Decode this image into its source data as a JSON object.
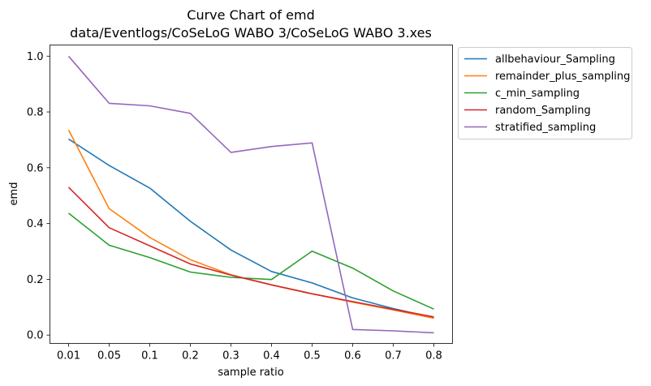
{
  "chart_data": {
    "type": "line",
    "title": "Curve Chart of emd",
    "subtitle": "data/Eventlogs/CoSeLoG WABO 3/CoSeLoG WABO 3.xes",
    "xlabel": "sample ratio",
    "ylabel": "emd",
    "categories": [
      "0.01",
      "0.05",
      "0.1",
      "0.2",
      "0.3",
      "0.4",
      "0.5",
      "0.6",
      "0.7",
      "0.8"
    ],
    "y_ticks": [
      "0.0",
      "0.2",
      "0.4",
      "0.6",
      "0.8",
      "1.0"
    ],
    "ylim": [
      -0.03,
      1.04
    ],
    "grid": false,
    "legend_position": "outside-top-right",
    "series": [
      {
        "name": "allbehaviour_Sampling",
        "color": "#1f77b4",
        "values": [
          0.703,
          0.608,
          0.527,
          0.408,
          0.305,
          0.228,
          0.187,
          0.133,
          0.095,
          0.062
        ]
      },
      {
        "name": "remainder_plus_sampling",
        "color": "#ff7f0e",
        "values": [
          0.735,
          0.453,
          0.35,
          0.27,
          0.216,
          0.18,
          0.148,
          0.118,
          0.09,
          0.06
        ]
      },
      {
        "name": "c_min_sampling",
        "color": "#2ca02c",
        "values": [
          0.437,
          0.322,
          0.278,
          0.226,
          0.207,
          0.199,
          0.301,
          0.24,
          0.158,
          0.093
        ]
      },
      {
        "name": "random_Sampling",
        "color": "#d62728",
        "values": [
          0.53,
          0.385,
          0.32,
          0.255,
          0.215,
          0.18,
          0.148,
          0.12,
          0.092,
          0.065
        ]
      },
      {
        "name": "stratified_sampling",
        "color": "#9467bd",
        "values": [
          1.0,
          0.831,
          0.822,
          0.795,
          0.655,
          0.676,
          0.689,
          0.02,
          0.015,
          0.008
        ]
      }
    ]
  }
}
